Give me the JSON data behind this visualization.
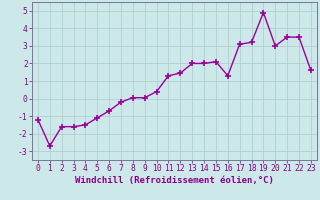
{
  "xlabel": "Windchill (Refroidissement éolien,°C)",
  "x": [
    0,
    1,
    2,
    3,
    4,
    5,
    6,
    7,
    8,
    9,
    10,
    11,
    12,
    13,
    14,
    15,
    16,
    17,
    18,
    19,
    20,
    21,
    22,
    23
  ],
  "y": [
    -1.2,
    -2.7,
    -1.6,
    -1.6,
    -1.5,
    -1.1,
    -0.7,
    -0.2,
    0.05,
    0.05,
    0.4,
    1.3,
    1.45,
    2.0,
    2.0,
    2.1,
    1.3,
    3.1,
    3.2,
    4.9,
    3.0,
    3.5,
    3.5,
    1.6
  ],
  "line_color": "#990099",
  "marker": "+",
  "marker_size": 4,
  "bg_color": "#cce8e8",
  "grid_color": "#aacccc",
  "axis_color": "#777799",
  "tick_color": "#880088",
  "ylim": [
    -3.5,
    5.5
  ],
  "yticks": [
    -3,
    -2,
    -1,
    0,
    1,
    2,
    3,
    4,
    5
  ],
  "xticks": [
    0,
    1,
    2,
    3,
    4,
    5,
    6,
    7,
    8,
    9,
    10,
    11,
    12,
    13,
    14,
    15,
    16,
    17,
    18,
    19,
    20,
    21,
    22,
    23
  ],
  "xlabel_fontsize": 6.5,
  "tick_fontsize": 5.8,
  "line_width": 1.0
}
